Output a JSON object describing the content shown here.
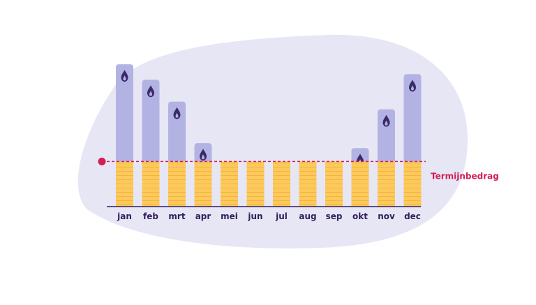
{
  "chart_data": {
    "type": "bar",
    "title": "",
    "xlabel": "",
    "ylabel": "",
    "categories": [
      "jan",
      "feb",
      "mrt",
      "apr",
      "mei",
      "jun",
      "jul",
      "aug",
      "sep",
      "okt",
      "nov",
      "dec"
    ],
    "series": [
      {
        "values": [
          202,
          180,
          149,
          90,
          64,
          64,
          64,
          64,
          64,
          83,
          138,
          188
        ]
      }
    ],
    "reference_line": {
      "label": "Termijnbedrag",
      "value": 64
    },
    "ylim": [
      0,
      210
    ],
    "grid": false,
    "flame_icon": "flame-icon",
    "colors": {
      "blob": "#e7e6f5",
      "bar_extra": "#b3b3e3",
      "bar_base": "#fcc95c",
      "bar_base_stripe": "#f8bb45",
      "reference": "#d01f55",
      "axis": "#2f1f5c",
      "flame": "#3b2a6b"
    }
  }
}
